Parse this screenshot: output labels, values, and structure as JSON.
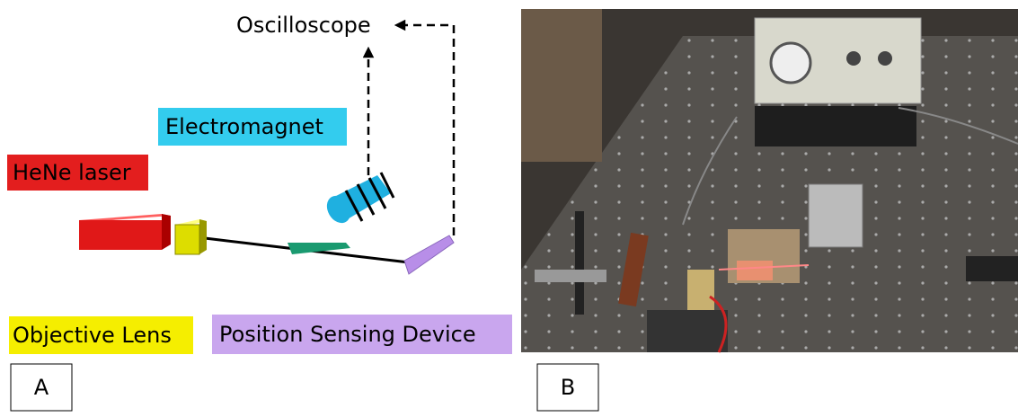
{
  "labels": {
    "oscilloscope": "Oscilloscope",
    "electromagnet": "Electromagnet",
    "laser": "HeNe laser",
    "objective": "Objective Lens",
    "psd": "Position Sensing Device"
  },
  "panels": [
    "A",
    "B"
  ]
}
